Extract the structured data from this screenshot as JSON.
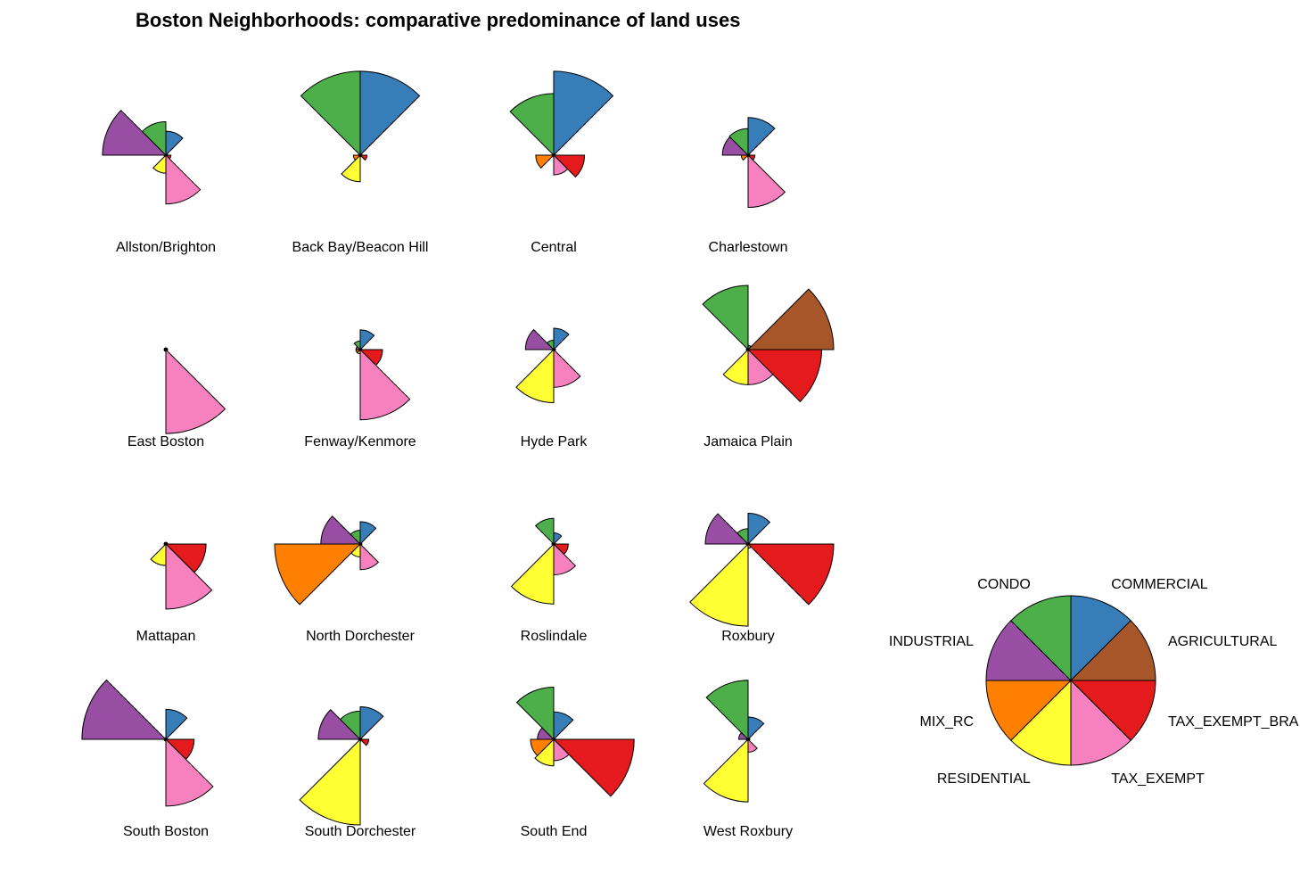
{
  "chart_data": {
    "type": "segment-star",
    "title": "Boston Neighborhoods: comparative predominance of land uses",
    "variables": [
      "COMMERCIAL",
      "AGRICULTURAL",
      "TAX_EXEMPT_BRA",
      "TAX_EXEMPT",
      "RESIDENTIAL",
      "MIX_RC",
      "INDUSTRIAL",
      "CONDO"
    ],
    "colors": {
      "COMMERCIAL": "#377EB8",
      "AGRICULTURAL": "#A65628",
      "TAX_EXEMPT_BRA": "#E41A1C",
      "TAX_EXEMPT": "#F781BF",
      "RESIDENTIAL": "#FFFF33",
      "MIX_RC": "#FF7F00",
      "INDUSTRIAL": "#984EA3",
      "CONDO": "#4DAF4A"
    },
    "value_scale": "relative (0-1)",
    "neighborhoods": [
      {
        "name": "Allston/Brighton",
        "values": [
          0.28,
          0.02,
          0.06,
          0.57,
          0.21,
          0.02,
          0.74,
          0.39
        ]
      },
      {
        "name": "Back Bay/Beacon Hill",
        "values": [
          0.98,
          0.02,
          0.08,
          0.02,
          0.31,
          0.08,
          0.02,
          0.98
        ]
      },
      {
        "name": "Central",
        "values": [
          0.98,
          0.02,
          0.36,
          0.23,
          0.02,
          0.21,
          0.02,
          0.72
        ]
      },
      {
        "name": "Charlestown",
        "values": [
          0.44,
          0.02,
          0.08,
          0.61,
          0.02,
          0.08,
          0.3,
          0.31
        ]
      },
      {
        "name": "East Boston",
        "values": [
          0.02,
          0.02,
          0.02,
          0.98,
          0.02,
          0.02,
          0.02,
          0.02
        ]
      },
      {
        "name": "Fenway/Kenmore",
        "values": [
          0.23,
          0.02,
          0.26,
          0.82,
          0.05,
          0.05,
          0.05,
          0.1
        ]
      },
      {
        "name": "Hyde Park",
        "values": [
          0.25,
          0.02,
          0.02,
          0.44,
          0.62,
          0.02,
          0.33,
          0.11
        ]
      },
      {
        "name": "Jamaica Plain",
        "values": [
          0.05,
          1.0,
          0.86,
          0.41,
          0.41,
          0.02,
          0.02,
          0.75
        ]
      },
      {
        "name": "Mattapan",
        "values": [
          0.02,
          0.02,
          0.47,
          0.76,
          0.25,
          0.02,
          0.02,
          0.02
        ]
      },
      {
        "name": "North Dorchester",
        "values": [
          0.26,
          0.02,
          0.02,
          0.3,
          0.15,
          1.0,
          0.46,
          0.16
        ]
      },
      {
        "name": "Roslindale",
        "values": [
          0.13,
          0.02,
          0.17,
          0.36,
          0.7,
          0.02,
          0.02,
          0.3
        ]
      },
      {
        "name": "Roxbury",
        "values": [
          0.36,
          0.02,
          1.0,
          0.05,
          0.96,
          0.02,
          0.5,
          0.18
        ]
      },
      {
        "name": "South Boston",
        "values": [
          0.35,
          0.02,
          0.33,
          0.78,
          0.02,
          0.02,
          0.98,
          0.02
        ]
      },
      {
        "name": "South Dorchester",
        "values": [
          0.38,
          0.02,
          0.1,
          0.02,
          1.0,
          0.02,
          0.49,
          0.33
        ]
      },
      {
        "name": "South End",
        "values": [
          0.32,
          0.02,
          0.94,
          0.25,
          0.31,
          0.27,
          0.19,
          0.61
        ]
      },
      {
        "name": "West Roxbury",
        "values": [
          0.26,
          0.02,
          0.02,
          0.15,
          0.73,
          0.02,
          0.11,
          0.69
        ]
      }
    ],
    "legend": {
      "type": "full-pie key",
      "placement": "right-bottom",
      "labels": [
        "COMMERCIAL",
        "AGRICULTURAL",
        "TAX_EXEMPT_BRA",
        "TAX_EXEMPT",
        "RESIDENTIAL",
        "MIX_RC",
        "INDUSTRIAL",
        "CONDO"
      ]
    }
  }
}
